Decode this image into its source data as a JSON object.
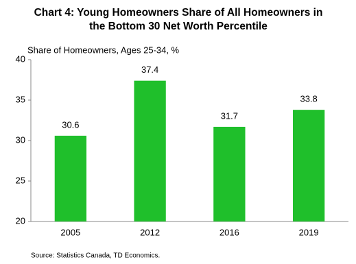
{
  "chart_data": {
    "type": "bar",
    "title": "Chart 4: Young Homeowners Share of All Homeowners in the Bottom 30 Net Worth Percentile",
    "y_label": "Share of Homeowners, Ages 25-34, %",
    "categories": [
      "2005",
      "2012",
      "2016",
      "2019"
    ],
    "values": [
      30.6,
      37.4,
      31.7,
      33.8
    ],
    "color": "#1fbf2b",
    "ylim": [
      20,
      40
    ],
    "yticks": [
      20,
      25,
      30,
      35,
      40
    ],
    "grid": false,
    "source": "Source: Statistics Canada, TD Economics."
  }
}
